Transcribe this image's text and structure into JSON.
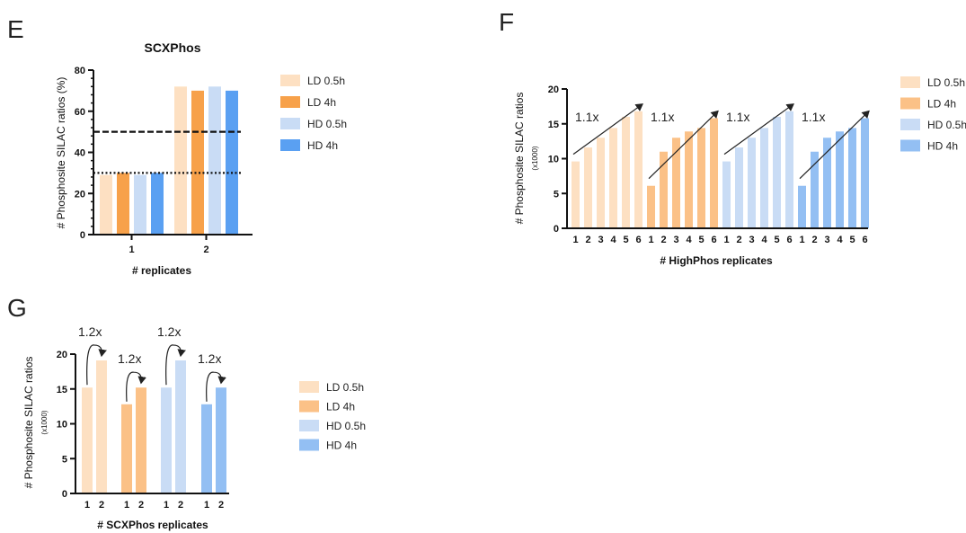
{
  "colors": {
    "ld_05h": "#fde0c2",
    "ld_4h": "#f7a14a",
    "ld_4h_light": "#fbc187",
    "hd_05h": "#c9dcf5",
    "hd_4h": "#5aa0f2",
    "hd_4h_light": "#93bff3"
  },
  "chart_data": [
    {
      "panel": "E",
      "type": "bar",
      "title": "SCXPhos",
      "xlabel": "# replicates",
      "ylabel": "# Phosphosite SILAC ratios (%)",
      "ylim": [
        0,
        80
      ],
      "yticks": [
        0,
        20,
        40,
        60,
        80
      ],
      "categories": [
        "1",
        "2"
      ],
      "series": [
        {
          "name": "LD 0.5h",
          "values": [
            29,
            72
          ]
        },
        {
          "name": "LD 4h",
          "values": [
            30,
            70
          ]
        },
        {
          "name": "HD 0.5h",
          "values": [
            29,
            72
          ]
        },
        {
          "name": "HD 4h",
          "values": [
            30,
            70
          ]
        }
      ],
      "reference_lines": [
        {
          "y": 50,
          "style": "dashed"
        },
        {
          "y": 30,
          "style": "dotted"
        }
      ],
      "legend": [
        "LD 0.5h",
        "LD 4h",
        "HD 0.5h",
        "HD 4h"
      ],
      "legend_position": "right"
    },
    {
      "panel": "F",
      "type": "bar",
      "xlabel": "# HighPhos replicates",
      "ylabel": "# Phosphosite SILAC ratios",
      "ylabel_sub": "(x1000)",
      "ylim": [
        0,
        20
      ],
      "yticks": [
        0,
        5,
        10,
        15,
        20
      ],
      "groups": [
        {
          "name": "LD 0.5h",
          "x": [
            "1",
            "2",
            "3",
            "4",
            "5",
            "6"
          ],
          "values": [
            9.6,
            11.6,
            13.0,
            14.4,
            16.0,
            16.8
          ],
          "annotation": "1.1x"
        },
        {
          "name": "LD 4h",
          "x": [
            "1",
            "2",
            "3",
            "4",
            "5",
            "6"
          ],
          "values": [
            6.1,
            11.0,
            13.0,
            13.9,
            14.4,
            15.8
          ],
          "annotation": "1.1x"
        },
        {
          "name": "HD 0.5h",
          "x": [
            "1",
            "2",
            "3",
            "4",
            "5",
            "6"
          ],
          "values": [
            9.6,
            11.6,
            13.0,
            14.4,
            16.0,
            16.8
          ],
          "annotation": "1.1x"
        },
        {
          "name": "HD 4h",
          "x": [
            "1",
            "2",
            "3",
            "4",
            "5",
            "6"
          ],
          "values": [
            6.1,
            11.0,
            13.0,
            13.9,
            14.4,
            15.8
          ],
          "annotation": "1.1x"
        }
      ],
      "legend": [
        "LD 0.5h",
        "LD 4h",
        "HD 0.5h",
        "HD 4h"
      ],
      "legend_position": "right"
    },
    {
      "panel": "G",
      "type": "bar",
      "xlabel": "# SCXPhos replicates",
      "ylabel": "# Phosphosite SILAC ratios",
      "ylabel_sub": "(x1000)",
      "ylim": [
        0,
        20
      ],
      "yticks": [
        0,
        5,
        10,
        15,
        20
      ],
      "groups": [
        {
          "name": "LD 0.5h",
          "x": [
            "1",
            "2"
          ],
          "values": [
            15.2,
            19.1
          ],
          "annotation": "1.2x"
        },
        {
          "name": "LD 4h",
          "x": [
            "1",
            "2"
          ],
          "values": [
            12.8,
            15.2
          ],
          "annotation": "1.2x"
        },
        {
          "name": "HD 0.5h",
          "x": [
            "1",
            "2"
          ],
          "values": [
            15.2,
            19.1
          ],
          "annotation": "1.2x"
        },
        {
          "name": "HD 4h",
          "x": [
            "1",
            "2"
          ],
          "values": [
            12.8,
            15.2
          ],
          "annotation": "1.2x"
        }
      ],
      "legend": [
        "LD 0.5h",
        "LD 4h",
        "HD 0.5h",
        "HD 4h"
      ],
      "legend_position": "right"
    }
  ],
  "panels": {
    "E": {
      "letter": "E"
    },
    "F": {
      "letter": "F"
    },
    "G": {
      "letter": "G"
    }
  }
}
